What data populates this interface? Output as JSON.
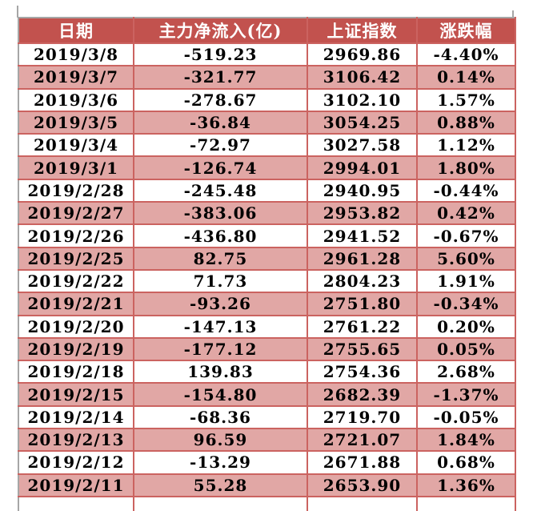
{
  "chart_data": {
    "type": "table",
    "title": "",
    "columns": [
      "日期",
      "主力净流入(亿)",
      "上证指数",
      "涨跌幅"
    ],
    "rows": [
      [
        "2019/3/8",
        "-519.23",
        "2969.86",
        "-4.40%"
      ],
      [
        "2019/3/7",
        "-321.77",
        "3106.42",
        "0.14%"
      ],
      [
        "2019/3/6",
        "-278.67",
        "3102.10",
        "1.57%"
      ],
      [
        "2019/3/5",
        "-36.84",
        "3054.25",
        "0.88%"
      ],
      [
        "2019/3/4",
        "-72.97",
        "3027.58",
        "1.12%"
      ],
      [
        "2019/3/1",
        "-126.74",
        "2994.01",
        "1.80%"
      ],
      [
        "2019/2/28",
        "-245.48",
        "2940.95",
        "-0.44%"
      ],
      [
        "2019/2/27",
        "-383.06",
        "2953.82",
        "0.42%"
      ],
      [
        "2019/2/26",
        "-436.80",
        "2941.52",
        "-0.67%"
      ],
      [
        "2019/2/25",
        "82.75",
        "2961.28",
        "5.60%"
      ],
      [
        "2019/2/22",
        "71.73",
        "2804.23",
        "1.91%"
      ],
      [
        "2019/2/21",
        "-93.26",
        "2751.80",
        "-0.34%"
      ],
      [
        "2019/2/20",
        "-147.13",
        "2761.22",
        "0.20%"
      ],
      [
        "2019/2/19",
        "-177.12",
        "2755.65",
        "0.05%"
      ],
      [
        "2019/2/18",
        "139.83",
        "2754.36",
        "2.68%"
      ],
      [
        "2019/2/15",
        "-154.80",
        "2682.39",
        "-1.37%"
      ],
      [
        "2019/2/14",
        "-68.36",
        "2719.70",
        "-0.05%"
      ],
      [
        "2019/2/13",
        "96.59",
        "2721.07",
        "1.84%"
      ],
      [
        "2019/2/12",
        "-13.29",
        "2671.88",
        "0.68%"
      ],
      [
        "2019/2/11",
        "55.28",
        "2653.90",
        "1.36%"
      ]
    ]
  },
  "colors": {
    "header_bg": "#c2524e",
    "header_text": "#ffffff",
    "stripe_bg": "#e1a7a5",
    "row_bg": "#ffffff",
    "grid_line": "#cb6360",
    "outer_gridline_gray": "#a6a6a6",
    "cell_text": "#000000"
  }
}
